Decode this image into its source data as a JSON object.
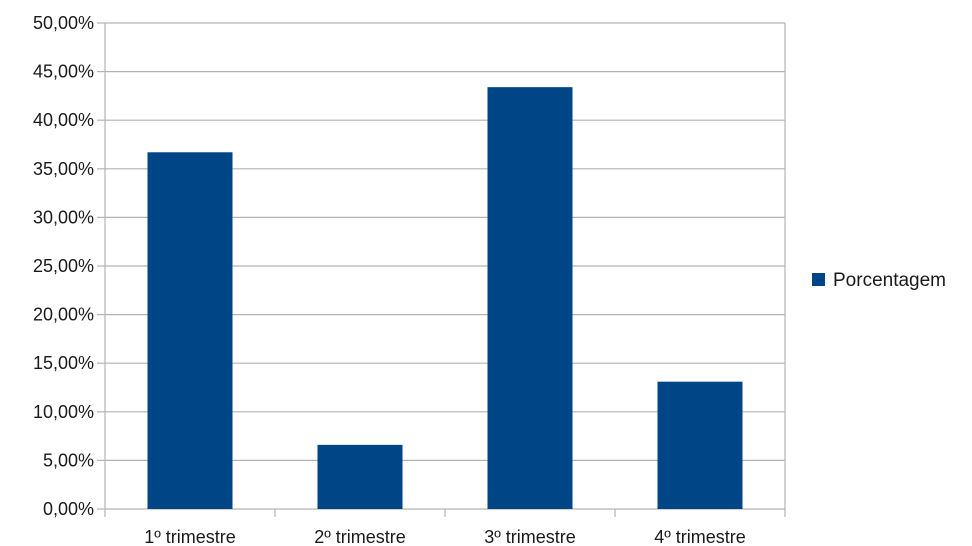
{
  "chart_data": {
    "type": "bar",
    "title": "",
    "xlabel": "",
    "ylabel": "",
    "categories": [
      "1º trimestre",
      "2º trimestre",
      "3º trimestre",
      "4º trimestre"
    ],
    "series": [
      {
        "name": "Porcentagem",
        "values": [
          36.7,
          6.6,
          43.4,
          13.1
        ]
      }
    ],
    "ylim": [
      0,
      50
    ],
    "ytick_step": 5,
    "ytick_labels": [
      "0,00%",
      "5,00%",
      "10,00%",
      "15,00%",
      "20,00%",
      "25,00%",
      "30,00%",
      "35,00%",
      "40,00%",
      "45,00%",
      "50,00%"
    ],
    "grid": true,
    "legend_position": "right",
    "colors": {
      "bar": "#004586",
      "grid": "#b3b3b3",
      "axis": "#b3b3b3"
    }
  }
}
